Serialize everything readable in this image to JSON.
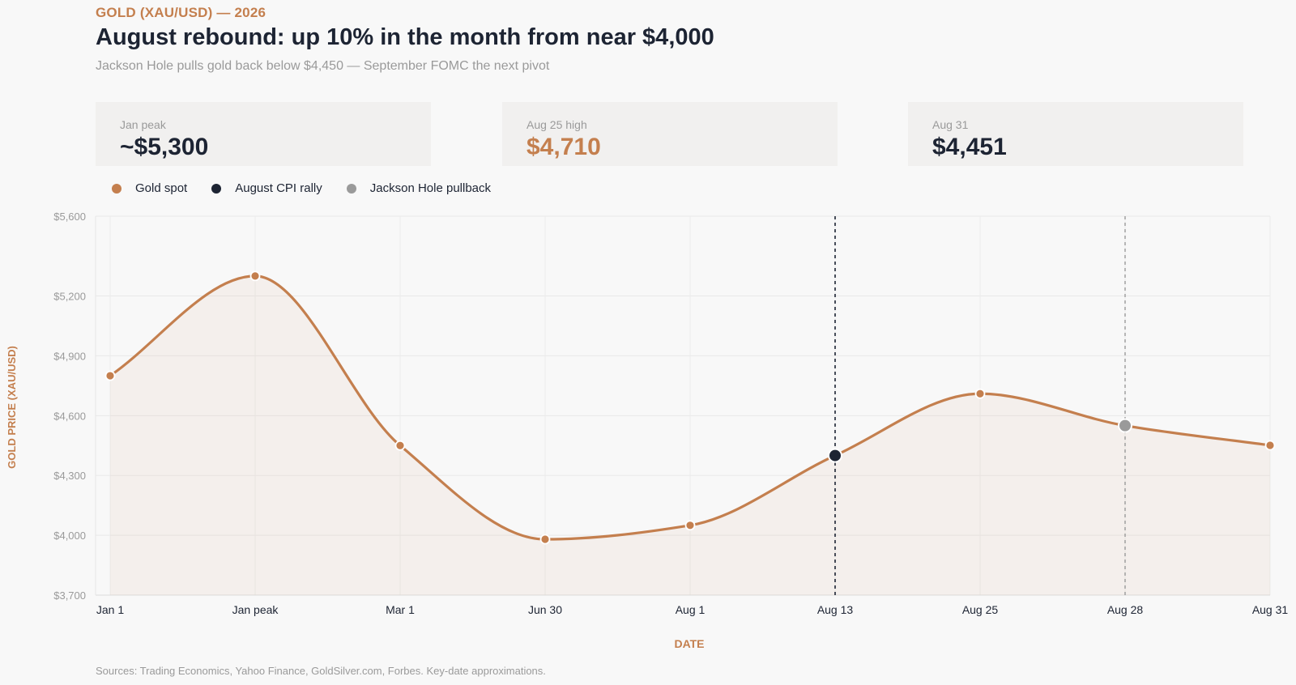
{
  "header": {
    "kicker": "GOLD (XAU/USD) — 2026",
    "title": "August rebound: up 10% in the month from near $4,000",
    "subtitle": "Jackson Hole pulls gold back below $4,450 — September FOMC the next pivot"
  },
  "stats": [
    {
      "label": "Jan peak",
      "value": "~$5,300",
      "accent": false
    },
    {
      "label": "Aug 25 high",
      "value": "$4,710",
      "accent": true
    },
    {
      "label": "Aug 31",
      "value": "$4,451",
      "accent": false
    }
  ],
  "legend": [
    {
      "label": "Gold spot",
      "color": "#c47f4e"
    },
    {
      "label": "August CPI rally",
      "color": "#1d2433"
    },
    {
      "label": "Jackson Hole pullback",
      "color": "#9a9a9a"
    }
  ],
  "sources": "Sources: Trading Economics, Yahoo Finance, GoldSilver.com, Forbes. Key-date approximations.",
  "colors": {
    "accent": "#c47f4e",
    "dark": "#1d2433",
    "gray": "#9a9a9a"
  },
  "chart_data": {
    "type": "area",
    "xlabel": "DATE",
    "ylabel": "GOLD PRICE (XAU/USD)",
    "categories": [
      "Jan 1",
      "Jan peak",
      "Mar 1",
      "Jun 30",
      "Aug 1",
      "Aug 13",
      "Aug 25",
      "Aug 28",
      "Aug 31"
    ],
    "series": [
      {
        "name": "Gold spot",
        "values": [
          4800,
          5300,
          4450,
          3980,
          4050,
          4400,
          4710,
          4550,
          4451
        ]
      }
    ],
    "ylim": [
      3700,
      5600
    ],
    "yticks": [
      3700,
      4000,
      4300,
      4600,
      4900,
      5200,
      5600
    ],
    "ytick_labels": [
      "$3,700",
      "$4,000",
      "$4,300",
      "$4,600",
      "$4,900",
      "$5,200",
      "$5,600"
    ],
    "annotations": [
      {
        "label": "August CPI rally",
        "category": "Aug 13",
        "value": 4400,
        "style": "dark"
      },
      {
        "label": "Jackson Hole pullback",
        "category": "Aug 28",
        "value": 4550,
        "style": "gray"
      }
    ],
    "grid": true
  }
}
